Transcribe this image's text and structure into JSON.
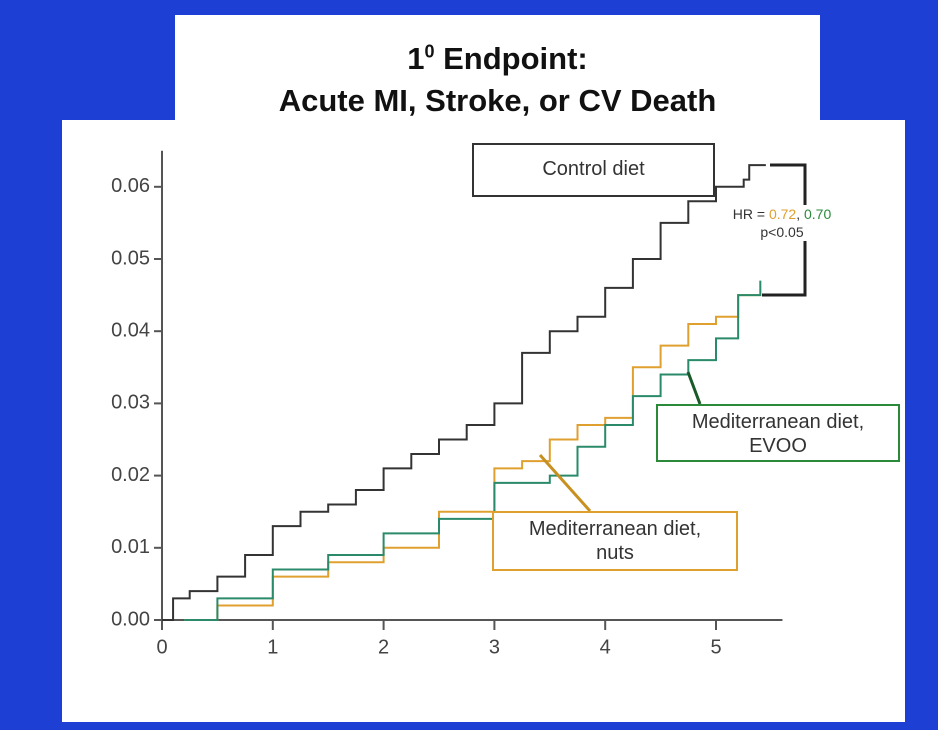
{
  "chart_data": {
    "type": "step",
    "title_number": "1",
    "title_superscript": "0",
    "title_line1": "Endpoint:",
    "title_line2": "Acute MI, Stroke, or CV Death",
    "xlim": [
      0,
      5.6
    ],
    "ylim": [
      0,
      0.065
    ],
    "xticks": [
      0,
      1,
      2,
      3,
      4,
      5
    ],
    "yticks": [
      {
        "value": 0,
        "label": "0.00"
      },
      {
        "value": 0.01,
        "label": "0.01"
      },
      {
        "value": 0.02,
        "label": "0.02"
      },
      {
        "value": 0.03,
        "label": "0.03"
      },
      {
        "value": 0.04,
        "label": "0.04"
      },
      {
        "value": 0.05,
        "label": "0.05"
      },
      {
        "value": 0.06,
        "label": "0.06"
      }
    ],
    "series": [
      {
        "name": "Control diet",
        "color": "#333333",
        "x": [
          0,
          0.1,
          0.25,
          0.5,
          0.75,
          1,
          1.25,
          1.5,
          1.75,
          2,
          2.25,
          2.5,
          2.75,
          3,
          3.25,
          3.5,
          3.75,
          4,
          4.25,
          4.5,
          4.75,
          5,
          5.25,
          5.3,
          5.45
        ],
        "values": [
          0,
          0.003,
          0.004,
          0.006,
          0.009,
          0.013,
          0.015,
          0.016,
          0.018,
          0.021,
          0.023,
          0.025,
          0.027,
          0.03,
          0.037,
          0.04,
          0.042,
          0.046,
          0.05,
          0.055,
          0.058,
          0.06,
          0.061,
          0.063,
          0.063
        ]
      },
      {
        "name": "Mediterranean diet, nuts",
        "color": "#e0a030",
        "x": [
          0.2,
          0.5,
          1,
          1.5,
          2,
          2.5,
          3,
          3.25,
          3.5,
          3.75,
          4,
          4.25,
          4.5,
          4.75,
          5,
          5.2,
          5.4
        ],
        "values": [
          0,
          0.002,
          0.006,
          0.008,
          0.01,
          0.015,
          0.021,
          0.022,
          0.025,
          0.027,
          0.028,
          0.035,
          0.038,
          0.041,
          0.042,
          0.045,
          0.045
        ]
      },
      {
        "name": "Mediterranean diet, EVOO",
        "color": "#2a8a6a",
        "x": [
          0.2,
          0.5,
          1,
          1.5,
          2,
          2.5,
          3,
          3.5,
          3.75,
          4,
          4.25,
          4.5,
          4.75,
          5,
          5.2,
          5.4
        ],
        "values": [
          0,
          0.003,
          0.007,
          0.009,
          0.012,
          0.014,
          0.019,
          0.02,
          0.024,
          0.027,
          0.031,
          0.034,
          0.036,
          0.039,
          0.045,
          0.047
        ]
      }
    ],
    "hr_prefix": "HR =",
    "hr_nuts": "0.72",
    "hr_separator": ",",
    "hr_evoo": "0.70",
    "p_value": "p<0.05"
  }
}
